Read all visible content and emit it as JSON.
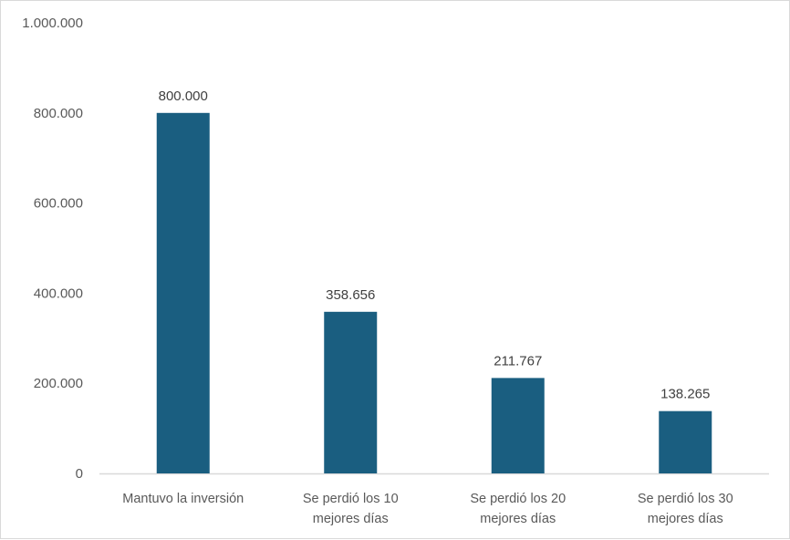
{
  "chart_data": {
    "type": "bar",
    "title": "",
    "xlabel": "",
    "ylabel": "",
    "categories": [
      [
        "Mantuvo la inversión"
      ],
      [
        "Se perdió los 10",
        "mejores días"
      ],
      [
        "Se perdió los 20",
        "mejores días"
      ],
      [
        "Se perdió los 30",
        "mejores días"
      ]
    ],
    "values": [
      800000,
      358656,
      211767,
      138265
    ],
    "data_labels": [
      "800.000",
      "358.656",
      "211.767",
      "138.265"
    ],
    "ylim": [
      0,
      1000000
    ],
    "yticks": [
      0,
      200000,
      400000,
      600000,
      800000,
      1000000
    ],
    "ytick_labels": [
      "0",
      "200.000",
      "400.000",
      "600.000",
      "800.000",
      "1.000.000"
    ],
    "grid": false,
    "legend": "none",
    "bar_color": "#1a5e80"
  }
}
